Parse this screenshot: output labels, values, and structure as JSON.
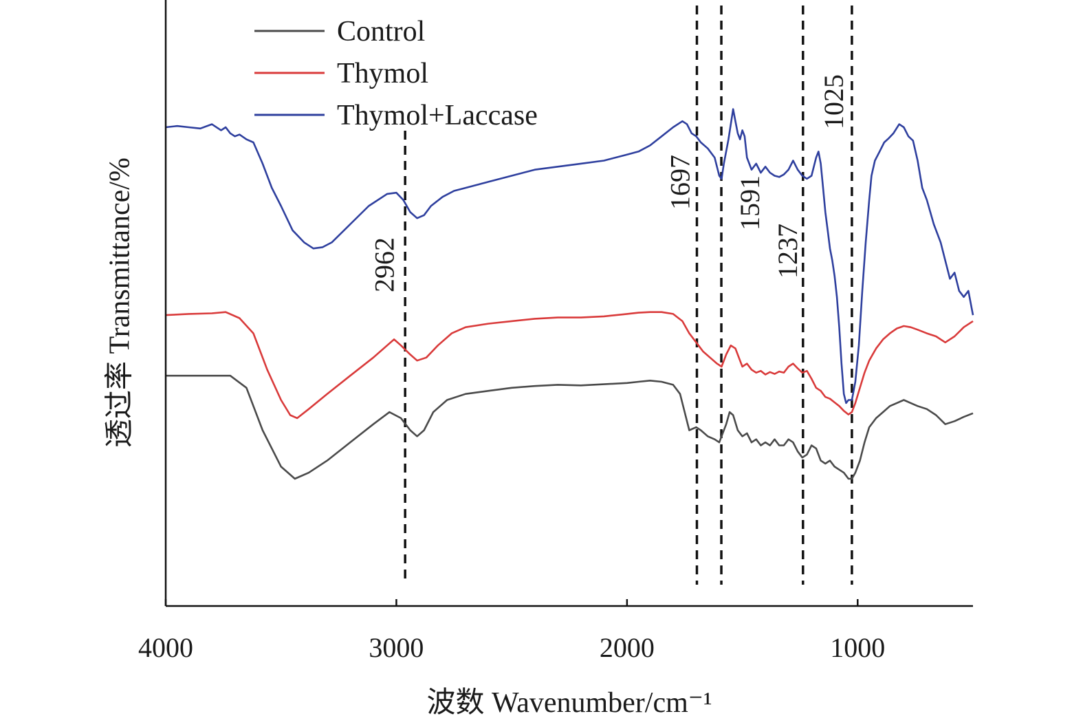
{
  "chart_data": {
    "type": "line",
    "title": "",
    "xlabel": "波数 Wavenumber/cm⁻¹",
    "ylabel": "透过率 Transmittance/%",
    "xlim": [
      4000,
      500
    ],
    "x_reversed": true,
    "x_ticks": [
      "4000",
      "3000",
      "2000",
      "1000"
    ],
    "x_tick_values": [
      4000,
      3000,
      2000,
      1000
    ],
    "ylim": [
      0,
      100
    ],
    "y_ticks_shown": false,
    "grid": false,
    "legend_position": "top-left",
    "colors": {
      "Control": "#4a4a4a",
      "Thymol": "#d93a3a",
      "Thymol+Laccase": "#2e3f9e",
      "reference": "#111111"
    },
    "series": [
      {
        "name": "Control",
        "color": "#4a4a4a",
        "points": [
          [
            4000,
            38
          ],
          [
            3900,
            38
          ],
          [
            3800,
            38
          ],
          [
            3720,
            38
          ],
          [
            3650,
            36
          ],
          [
            3580,
            29
          ],
          [
            3500,
            23
          ],
          [
            3440,
            21
          ],
          [
            3380,
            22
          ],
          [
            3300,
            24
          ],
          [
            3200,
            27
          ],
          [
            3100,
            30
          ],
          [
            3030,
            32
          ],
          [
            2980,
            31
          ],
          [
            2940,
            29
          ],
          [
            2910,
            28
          ],
          [
            2880,
            29
          ],
          [
            2840,
            32
          ],
          [
            2780,
            34
          ],
          [
            2700,
            35
          ],
          [
            2600,
            35.5
          ],
          [
            2500,
            36
          ],
          [
            2400,
            36.3
          ],
          [
            2300,
            36.5
          ],
          [
            2200,
            36.4
          ],
          [
            2100,
            36.6
          ],
          [
            2000,
            36.8
          ],
          [
            1950,
            37
          ],
          [
            1900,
            37.2
          ],
          [
            1850,
            37
          ],
          [
            1800,
            36.5
          ],
          [
            1770,
            35
          ],
          [
            1750,
            32
          ],
          [
            1730,
            29
          ],
          [
            1700,
            29.5
          ],
          [
            1680,
            29
          ],
          [
            1650,
            28
          ],
          [
            1620,
            27.5
          ],
          [
            1600,
            27
          ],
          [
            1570,
            30
          ],
          [
            1555,
            32
          ],
          [
            1540,
            31.5
          ],
          [
            1520,
            29
          ],
          [
            1500,
            28
          ],
          [
            1480,
            28.5
          ],
          [
            1460,
            27
          ],
          [
            1440,
            27.5
          ],
          [
            1420,
            26.5
          ],
          [
            1400,
            27
          ],
          [
            1380,
            26.5
          ],
          [
            1360,
            27.5
          ],
          [
            1340,
            26.5
          ],
          [
            1320,
            26.5
          ],
          [
            1300,
            27.5
          ],
          [
            1280,
            27
          ],
          [
            1260,
            25.5
          ],
          [
            1240,
            24.5
          ],
          [
            1220,
            25
          ],
          [
            1200,
            26.5
          ],
          [
            1180,
            26
          ],
          [
            1160,
            24
          ],
          [
            1140,
            23.5
          ],
          [
            1120,
            24
          ],
          [
            1100,
            23
          ],
          [
            1080,
            22.5
          ],
          [
            1060,
            22
          ],
          [
            1040,
            21
          ],
          [
            1025,
            21
          ],
          [
            1010,
            22
          ],
          [
            990,
            24
          ],
          [
            970,
            27
          ],
          [
            950,
            29.5
          ],
          [
            920,
            31
          ],
          [
            890,
            32
          ],
          [
            860,
            33
          ],
          [
            830,
            33.5
          ],
          [
            800,
            34
          ],
          [
            770,
            33.5
          ],
          [
            740,
            33
          ],
          [
            700,
            32.5
          ],
          [
            660,
            31.5
          ],
          [
            620,
            30
          ],
          [
            580,
            30.5
          ],
          [
            540,
            31.2
          ],
          [
            500,
            31.8
          ]
        ]
      },
      {
        "name": "Thymol",
        "color": "#d93a3a",
        "points": [
          [
            4000,
            48
          ],
          [
            3900,
            48.2
          ],
          [
            3800,
            48.3
          ],
          [
            3740,
            48.5
          ],
          [
            3680,
            47.5
          ],
          [
            3620,
            45
          ],
          [
            3560,
            39
          ],
          [
            3500,
            34
          ],
          [
            3460,
            31.5
          ],
          [
            3430,
            31
          ],
          [
            3380,
            32.5
          ],
          [
            3300,
            35
          ],
          [
            3200,
            38
          ],
          [
            3100,
            41
          ],
          [
            3040,
            43
          ],
          [
            3010,
            44
          ],
          [
            2980,
            43
          ],
          [
            2940,
            41.5
          ],
          [
            2910,
            40.5
          ],
          [
            2870,
            41
          ],
          [
            2820,
            43
          ],
          [
            2760,
            45
          ],
          [
            2700,
            46
          ],
          [
            2600,
            46.6
          ],
          [
            2500,
            47
          ],
          [
            2400,
            47.4
          ],
          [
            2300,
            47.6
          ],
          [
            2200,
            47.6
          ],
          [
            2100,
            47.8
          ],
          [
            2000,
            48.2
          ],
          [
            1950,
            48.4
          ],
          [
            1900,
            48.5
          ],
          [
            1850,
            48.5
          ],
          [
            1800,
            48.2
          ],
          [
            1760,
            47
          ],
          [
            1730,
            45
          ],
          [
            1700,
            43.5
          ],
          [
            1670,
            42
          ],
          [
            1640,
            41
          ],
          [
            1610,
            40
          ],
          [
            1590,
            39.5
          ],
          [
            1570,
            41.5
          ],
          [
            1550,
            43
          ],
          [
            1530,
            42.5
          ],
          [
            1510,
            40.5
          ],
          [
            1500,
            39.5
          ],
          [
            1480,
            40
          ],
          [
            1460,
            39
          ],
          [
            1440,
            38.5
          ],
          [
            1420,
            38.8
          ],
          [
            1400,
            38.2
          ],
          [
            1380,
            38.6
          ],
          [
            1360,
            38.3
          ],
          [
            1340,
            38.7
          ],
          [
            1320,
            38.5
          ],
          [
            1300,
            39.5
          ],
          [
            1280,
            40
          ],
          [
            1260,
            39.2
          ],
          [
            1240,
            38.5
          ],
          [
            1220,
            38.8
          ],
          [
            1200,
            37.5
          ],
          [
            1180,
            36
          ],
          [
            1160,
            35.5
          ],
          [
            1140,
            34.5
          ],
          [
            1120,
            34.2
          ],
          [
            1100,
            33.6
          ],
          [
            1080,
            33
          ],
          [
            1060,
            32.2
          ],
          [
            1040,
            31.6
          ],
          [
            1025,
            32
          ],
          [
            1010,
            33.5
          ],
          [
            990,
            36
          ],
          [
            970,
            38.5
          ],
          [
            950,
            40.5
          ],
          [
            920,
            42.5
          ],
          [
            890,
            44
          ],
          [
            860,
            45
          ],
          [
            830,
            45.8
          ],
          [
            800,
            46.2
          ],
          [
            770,
            46
          ],
          [
            740,
            45.6
          ],
          [
            700,
            45
          ],
          [
            660,
            44.5
          ],
          [
            620,
            43.5
          ],
          [
            580,
            44.5
          ],
          [
            540,
            46
          ],
          [
            500,
            47
          ]
        ]
      },
      {
        "name": "Thymol+Laccase",
        "color": "#2e3f9e",
        "points": [
          [
            4000,
            79
          ],
          [
            3950,
            79.2
          ],
          [
            3900,
            79
          ],
          [
            3850,
            78.8
          ],
          [
            3800,
            79.5
          ],
          [
            3760,
            78.5
          ],
          [
            3740,
            79
          ],
          [
            3720,
            78
          ],
          [
            3700,
            77.5
          ],
          [
            3680,
            77.8
          ],
          [
            3650,
            77
          ],
          [
            3620,
            76.5
          ],
          [
            3580,
            73
          ],
          [
            3540,
            69
          ],
          [
            3500,
            66
          ],
          [
            3450,
            62
          ],
          [
            3400,
            60
          ],
          [
            3360,
            59
          ],
          [
            3320,
            59.2
          ],
          [
            3280,
            60
          ],
          [
            3200,
            63
          ],
          [
            3120,
            66
          ],
          [
            3040,
            68
          ],
          [
            3000,
            68.2
          ],
          [
            2970,
            67
          ],
          [
            2940,
            65
          ],
          [
            2910,
            64
          ],
          [
            2880,
            64.5
          ],
          [
            2850,
            66
          ],
          [
            2800,
            67.5
          ],
          [
            2750,
            68.5
          ],
          [
            2700,
            69
          ],
          [
            2600,
            70
          ],
          [
            2500,
            71
          ],
          [
            2400,
            72
          ],
          [
            2300,
            72.5
          ],
          [
            2200,
            73
          ],
          [
            2100,
            73.5
          ],
          [
            2000,
            74.5
          ],
          [
            1950,
            75
          ],
          [
            1900,
            76
          ],
          [
            1850,
            77.5
          ],
          [
            1800,
            79
          ],
          [
            1760,
            80
          ],
          [
            1740,
            79.5
          ],
          [
            1720,
            78
          ],
          [
            1700,
            77.5
          ],
          [
            1680,
            76.5
          ],
          [
            1650,
            75.5
          ],
          [
            1620,
            74
          ],
          [
            1600,
            71
          ],
          [
            1590,
            70.5
          ],
          [
            1580,
            73
          ],
          [
            1560,
            77
          ],
          [
            1540,
            82
          ],
          [
            1530,
            80
          ],
          [
            1520,
            78
          ],
          [
            1510,
            77
          ],
          [
            1500,
            78.5
          ],
          [
            1490,
            77.5
          ],
          [
            1480,
            74
          ],
          [
            1460,
            72
          ],
          [
            1440,
            73
          ],
          [
            1420,
            71.5
          ],
          [
            1400,
            72.5
          ],
          [
            1380,
            71.5
          ],
          [
            1360,
            71
          ],
          [
            1340,
            70.8
          ],
          [
            1320,
            71.2
          ],
          [
            1300,
            72
          ],
          [
            1280,
            73.5
          ],
          [
            1260,
            72
          ],
          [
            1240,
            71
          ],
          [
            1220,
            70.5
          ],
          [
            1200,
            71
          ],
          [
            1180,
            74
          ],
          [
            1170,
            75
          ],
          [
            1160,
            73
          ],
          [
            1150,
            69
          ],
          [
            1140,
            65
          ],
          [
            1130,
            62
          ],
          [
            1120,
            59
          ],
          [
            1110,
            57
          ],
          [
            1100,
            54.5
          ],
          [
            1090,
            51
          ],
          [
            1080,
            46
          ],
          [
            1070,
            40
          ],
          [
            1060,
            35
          ],
          [
            1050,
            33.5
          ],
          [
            1040,
            34
          ],
          [
            1025,
            34
          ],
          [
            1010,
            37
          ],
          [
            995,
            43
          ],
          [
            980,
            52
          ],
          [
            965,
            60
          ],
          [
            950,
            67
          ],
          [
            940,
            71
          ],
          [
            925,
            73.5
          ],
          [
            905,
            75
          ],
          [
            885,
            76.5
          ],
          [
            865,
            77.2
          ],
          [
            845,
            78
          ],
          [
            820,
            79.5
          ],
          [
            800,
            79
          ],
          [
            780,
            77.5
          ],
          [
            760,
            76.8
          ],
          [
            740,
            73.5
          ],
          [
            720,
            69
          ],
          [
            700,
            67
          ],
          [
            670,
            63
          ],
          [
            640,
            60
          ],
          [
            620,
            57
          ],
          [
            600,
            54
          ],
          [
            580,
            55
          ],
          [
            560,
            52
          ],
          [
            540,
            51
          ],
          [
            520,
            52
          ],
          [
            500,
            48
          ]
        ]
      }
    ],
    "reference_lines": [
      {
        "x": 2962,
        "label": "2962"
      },
      {
        "x": 1697,
        "label": "1697"
      },
      {
        "x": 1591,
        "label": "1591"
      },
      {
        "x": 1237,
        "label": "1237"
      },
      {
        "x": 1025,
        "label": "1025"
      }
    ]
  }
}
